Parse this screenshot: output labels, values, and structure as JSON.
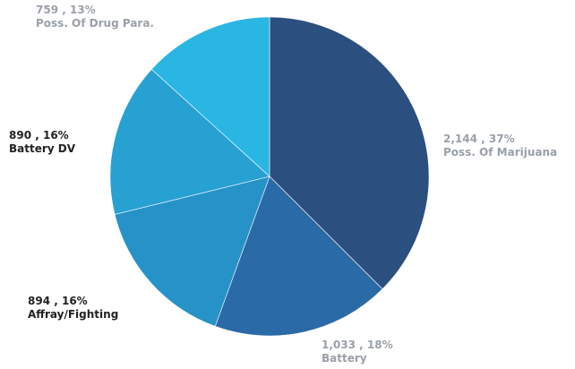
{
  "chart_data": {
    "type": "pie",
    "title": "",
    "slices": [
      {
        "label": "Poss. Of Marijuana",
        "value": 2144,
        "value_text": "2,144",
        "percent": 37,
        "percent_text": "37%",
        "color": "#2b4f7e"
      },
      {
        "label": "Battery",
        "value": 1033,
        "value_text": "1,033",
        "percent": 18,
        "percent_text": "18%",
        "color": "#2a6aa6"
      },
      {
        "label": "Affray/Fighting",
        "value": 894,
        "value_text": "894",
        "percent": 16,
        "percent_text": "16%",
        "color": "#2692c8"
      },
      {
        "label": "Battery DV",
        "value": 890,
        "value_text": "890",
        "percent": 16,
        "percent_text": "16%",
        "color": "#27a0d2"
      },
      {
        "label": "Poss. Of Drug Para.",
        "value": 759,
        "value_text": "759",
        "percent": 13,
        "percent_text": "13%",
        "color": "#2ab6e2"
      }
    ],
    "label_colors": {
      "Poss. Of Marijuana": "#9aa0a8",
      "Battery": "#9aa0a8",
      "Affray/Fighting": "#222222",
      "Battery DV": "#222222",
      "Poss. Of Drug Para.": "#9aa0a8"
    }
  }
}
